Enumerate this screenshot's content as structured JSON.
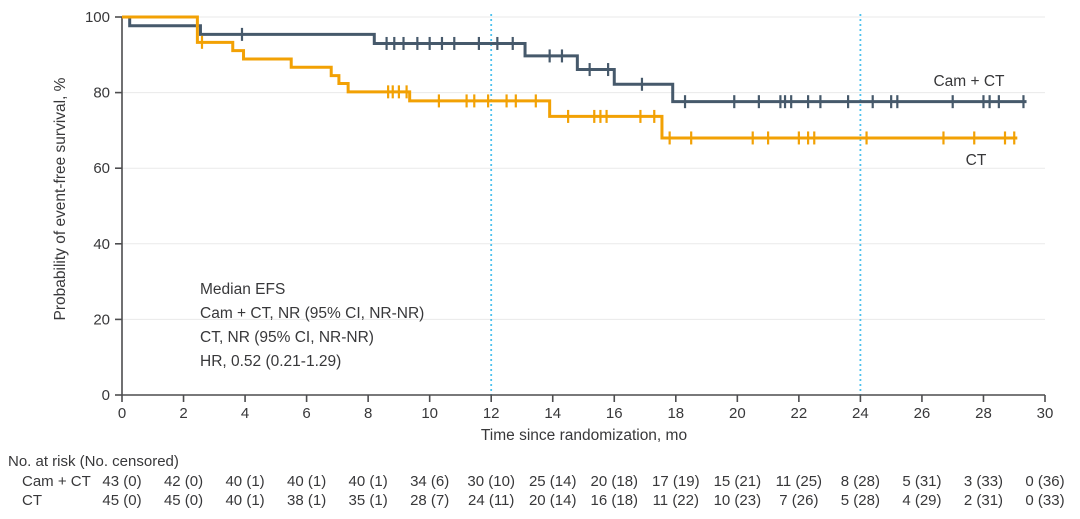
{
  "chart_data": {
    "type": "line",
    "subtype": "kaplan-meier-step",
    "title": "",
    "xlabel": "Time since randomization, mo",
    "ylabel": "Probability of event-free survival, %",
    "xlim": [
      0,
      30
    ],
    "ylim": [
      0,
      100
    ],
    "x_ticks": [
      0,
      2,
      4,
      6,
      8,
      10,
      12,
      14,
      16,
      18,
      20,
      22,
      24,
      26,
      28,
      30
    ],
    "y_ticks": [
      0,
      20,
      40,
      60,
      80,
      100
    ],
    "grid": "horizontal",
    "reference_lines_x": [
      12,
      24
    ],
    "reference_line_color": "#4EC2EE",
    "annotation": [
      "Median EFS",
      "Cam + CT, NR (95% CI, NR-NR)",
      "CT, NR (95% CI, NR-NR)",
      "HR, 0.52 (0.21-1.29)"
    ],
    "series": [
      {
        "name": "Cam + CT",
        "color": "#46596B",
        "steps": [
          [
            0,
            100
          ],
          [
            0.25,
            97.7
          ],
          [
            2.55,
            95.4
          ],
          [
            8.2,
            93.0
          ],
          [
            13.1,
            89.7
          ],
          [
            14.8,
            86.1
          ],
          [
            16.0,
            82.2
          ],
          [
            17.9,
            77.6
          ]
        ],
        "end": 29.4,
        "censors": [
          [
            3.9,
            95.4
          ],
          [
            8.6,
            93.0
          ],
          [
            8.85,
            93.0
          ],
          [
            9.15,
            93.0
          ],
          [
            9.6,
            93.0
          ],
          [
            10.0,
            93.0
          ],
          [
            10.4,
            93.0
          ],
          [
            10.8,
            93.0
          ],
          [
            11.6,
            93.0
          ],
          [
            12.2,
            93.0
          ],
          [
            12.7,
            93.0
          ],
          [
            13.9,
            89.7
          ],
          [
            14.3,
            89.7
          ],
          [
            15.2,
            86.1
          ],
          [
            15.8,
            86.1
          ],
          [
            16.9,
            82.2
          ],
          [
            18.3,
            77.6
          ],
          [
            19.9,
            77.6
          ],
          [
            20.7,
            77.6
          ],
          [
            21.4,
            77.6
          ],
          [
            21.55,
            77.6
          ],
          [
            21.75,
            77.6
          ],
          [
            22.3,
            77.6
          ],
          [
            22.7,
            77.6
          ],
          [
            23.6,
            77.6
          ],
          [
            24.4,
            77.6
          ],
          [
            25.0,
            77.6
          ],
          [
            25.2,
            77.6
          ],
          [
            27.0,
            77.6
          ],
          [
            28.0,
            77.6
          ],
          [
            28.2,
            77.6
          ],
          [
            28.5,
            77.6
          ],
          [
            29.3,
            77.6
          ]
        ]
      },
      {
        "name": "CT",
        "color": "#F2A104",
        "steps": [
          [
            0,
            100
          ],
          [
            2.45,
            93.3
          ],
          [
            3.6,
            91.1
          ],
          [
            3.95,
            88.9
          ],
          [
            5.5,
            86.7
          ],
          [
            6.8,
            84.5
          ],
          [
            7.05,
            82.4
          ],
          [
            7.35,
            80.2
          ],
          [
            9.35,
            77.8
          ],
          [
            13.9,
            73.7
          ],
          [
            17.55,
            68.0
          ]
        ],
        "end": 29.1,
        "censors": [
          [
            2.6,
            93.3
          ],
          [
            8.65,
            80.2
          ],
          [
            8.8,
            80.2
          ],
          [
            9.0,
            80.2
          ],
          [
            9.25,
            80.2
          ],
          [
            10.3,
            77.8
          ],
          [
            11.2,
            77.8
          ],
          [
            11.45,
            77.8
          ],
          [
            11.9,
            77.8
          ],
          [
            12.5,
            77.8
          ],
          [
            12.8,
            77.8
          ],
          [
            13.45,
            77.8
          ],
          [
            14.5,
            73.7
          ],
          [
            15.35,
            73.7
          ],
          [
            15.55,
            73.7
          ],
          [
            15.75,
            73.7
          ],
          [
            16.85,
            73.7
          ],
          [
            17.3,
            73.7
          ],
          [
            17.8,
            68.0
          ],
          [
            18.5,
            68.0
          ],
          [
            20.5,
            68.0
          ],
          [
            21.0,
            68.0
          ],
          [
            22.0,
            68.0
          ],
          [
            22.3,
            68.0
          ],
          [
            22.5,
            68.0
          ],
          [
            24.2,
            68.0
          ],
          [
            26.7,
            68.0
          ],
          [
            27.7,
            68.0
          ],
          [
            28.7,
            68.0
          ],
          [
            29.0,
            68.0
          ]
        ]
      }
    ]
  },
  "risk_table": {
    "header": "No. at risk (No. censored)",
    "times": [
      0,
      2,
      4,
      6,
      8,
      10,
      12,
      14,
      16,
      18,
      20,
      22,
      24,
      26,
      28,
      30
    ],
    "rows": [
      {
        "label": "Cam + CT",
        "values": [
          "43 (0)",
          "42 (0)",
          "40 (1)",
          "40 (1)",
          "40 (1)",
          "34 (6)",
          "30 (10)",
          "25 (14)",
          "20 (18)",
          "17 (19)",
          "15 (21)",
          "11 (25)",
          "8 (28)",
          "5 (31)",
          "3 (33)",
          "0 (36)"
        ]
      },
      {
        "label": "CT",
        "values": [
          "45 (0)",
          "45 (0)",
          "40 (1)",
          "38 (1)",
          "35 (1)",
          "28 (7)",
          "24 (11)",
          "20 (14)",
          "16 (18)",
          "11 (22)",
          "10 (23)",
          "7 (26)",
          "5 (28)",
          "4 (29)",
          "2 (31)",
          "0 (33)"
        ]
      }
    ]
  },
  "colors": {
    "camct": "#46596B",
    "ct": "#F2A104",
    "reference": "#4EC2EE",
    "axis": "#4D4D4F",
    "grid": "#EAEAEA",
    "text": "#38383A"
  }
}
